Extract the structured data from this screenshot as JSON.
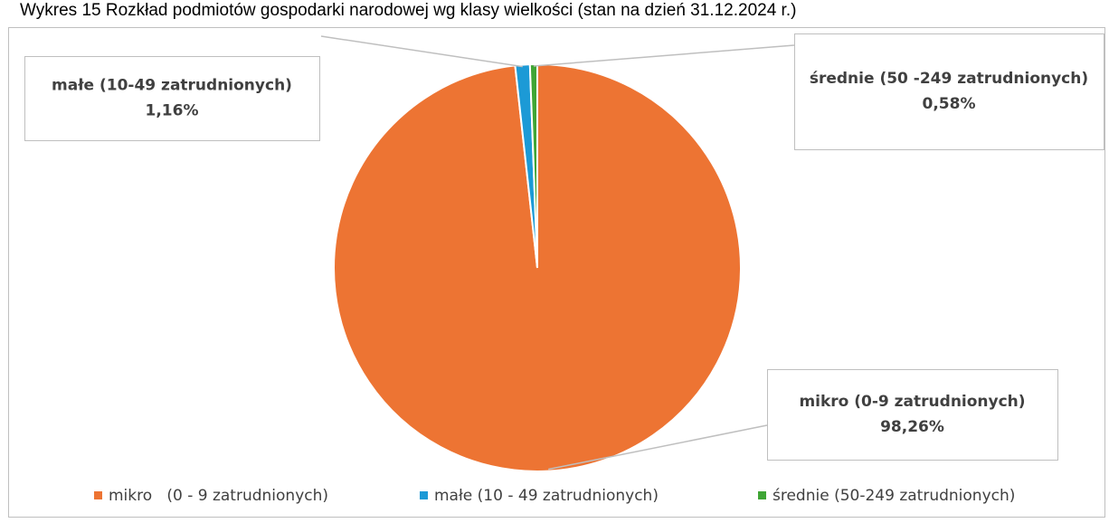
{
  "chart_data": {
    "type": "pie",
    "title": "Wykres 15 Rozkład podmiotów gospodarki narodowej wg klasy wielkości (stan na dzień 31.12.2024 r.)",
    "categories": [
      "mikro   (0 - 9 zatrudnionych)",
      "małe (10 - 49 zatrudnionych)",
      "średnie (50-249 zatrudnionych)"
    ],
    "values": [
      98.26,
      1.16,
      0.58
    ],
    "value_labels": [
      "98,26%",
      "1,16%",
      "0,58%"
    ],
    "data_label_names": [
      "mikro (0-9 zatrudnionych)",
      "małe (10-49 zatrudnionych)",
      "średnie (50 -249 zatrudnionych)"
    ],
    "colors": [
      "#ed7433",
      "#1c9ad6",
      "#3fa535"
    ],
    "legend": "bottom"
  }
}
